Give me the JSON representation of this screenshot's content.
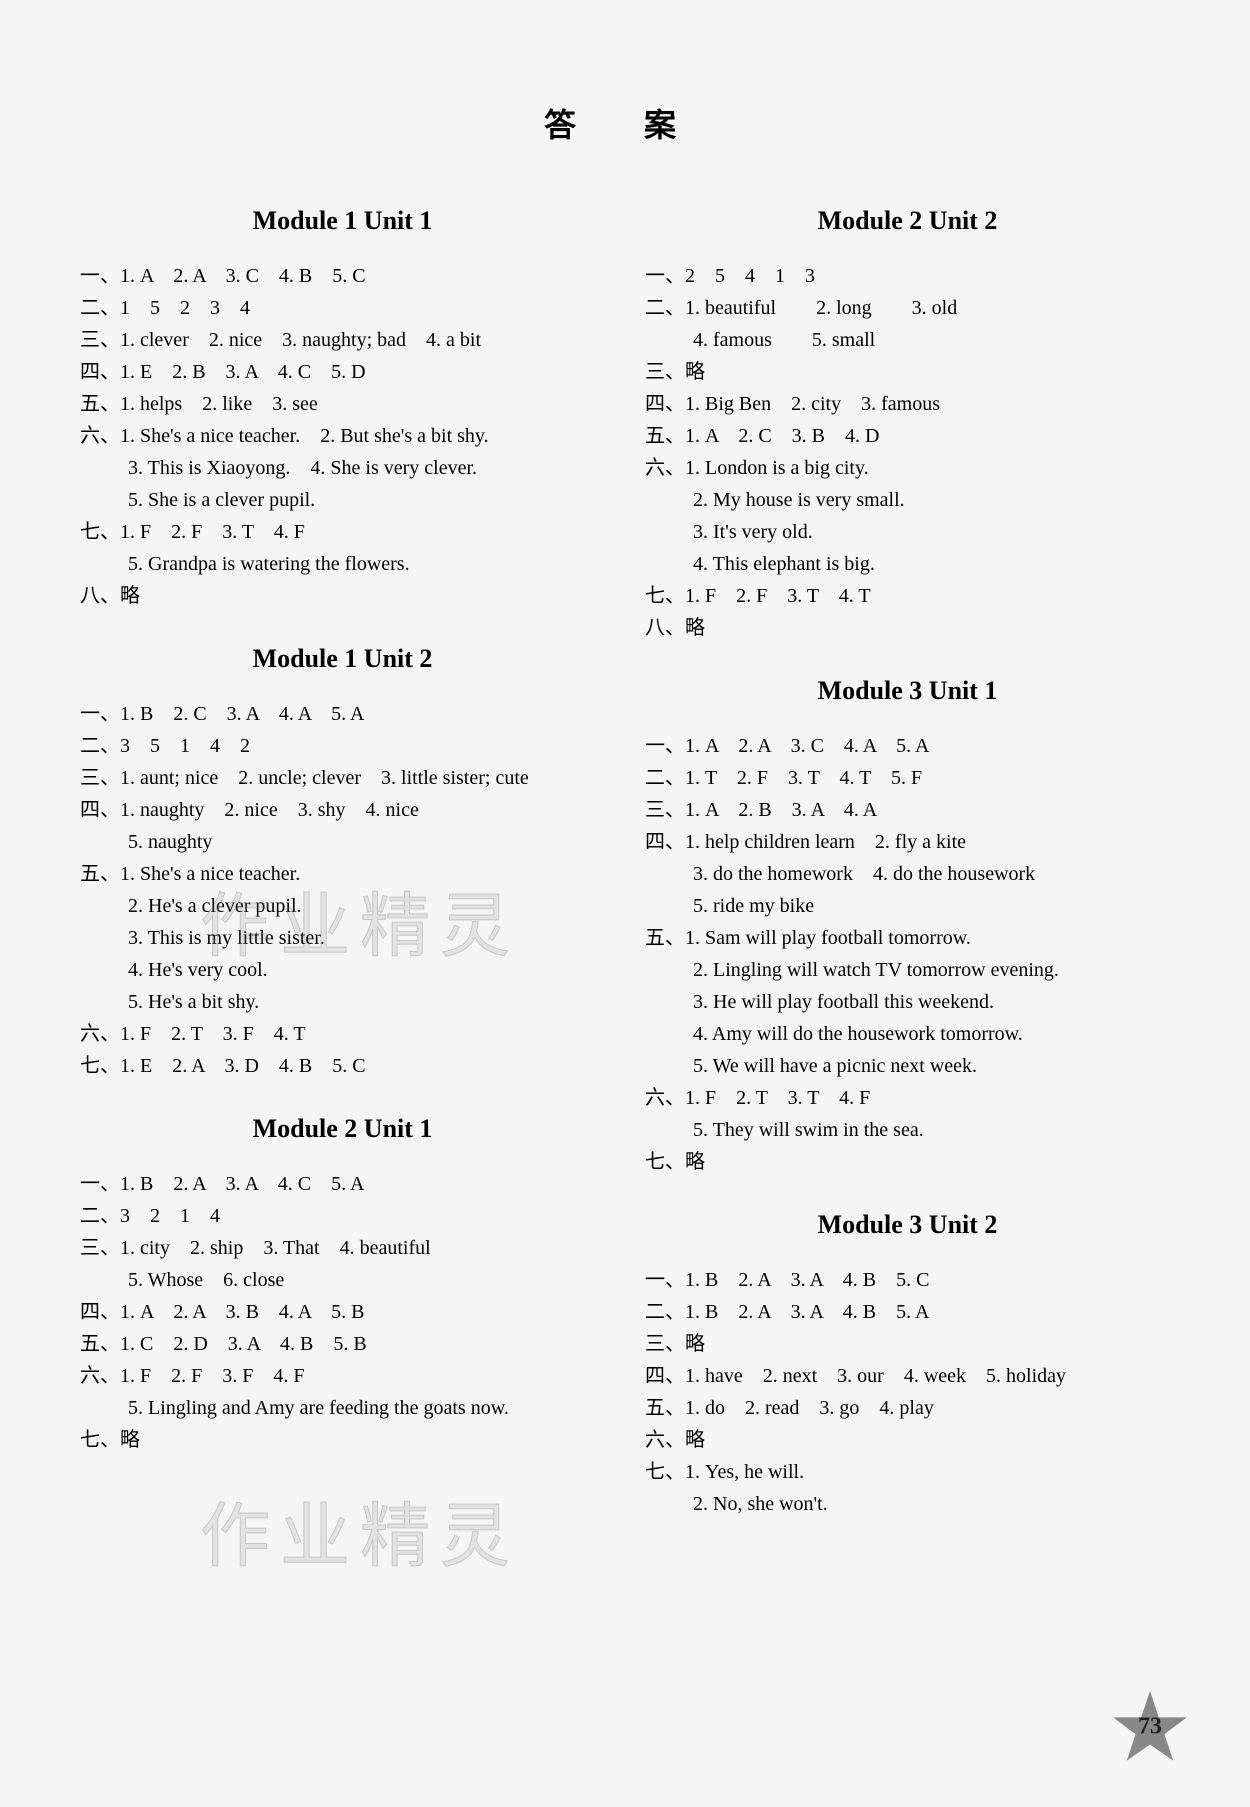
{
  "title": "答 案",
  "page_number": "73",
  "watermarks": [
    "作业精灵",
    "作业精灵"
  ],
  "colors": {
    "background": "#f5f5f5",
    "text": "#000000",
    "star_fill": "#888888",
    "star_number": "#222222"
  },
  "typography": {
    "title_fontsize": 32,
    "module_title_fontsize": 26,
    "body_fontsize": 20,
    "font_family": "Times New Roman / SimSun"
  },
  "left": [
    {
      "title": "Module 1 Unit 1",
      "rows": [
        {
          "label": "一、",
          "text": "1. A　2. A　3. C　4. B　5. C"
        },
        {
          "label": "二、",
          "text": "1　5　2　3　4"
        },
        {
          "label": "三、",
          "text": "1. clever　2. nice　3. naughty; bad　4. a bit"
        },
        {
          "label": "四、",
          "text": "1. E　2. B　3. A　4. C　5. D"
        },
        {
          "label": "五、",
          "text": "1. helps　2. like　3. see"
        },
        {
          "label": "六、",
          "text": "1. She's a nice teacher.　2. But she's a bit shy.",
          "subs": [
            "3. This is Xiaoyong.　4. She is very clever.",
            "5. She is a clever pupil."
          ]
        },
        {
          "label": "七、",
          "text": "1. F　2. F　3. T　4. F",
          "subs": [
            "5. Grandpa is watering the flowers."
          ]
        },
        {
          "label": "八、",
          "text": "略"
        }
      ]
    },
    {
      "title": "Module 1 Unit 2",
      "rows": [
        {
          "label": "一、",
          "text": "1. B　2. C　3. A　4. A　5. A"
        },
        {
          "label": "二、",
          "text": "3　5　1　4　2"
        },
        {
          "label": "三、",
          "text": "1. aunt; nice　2. uncle; clever　3. little sister; cute",
          "subs": []
        },
        {
          "label": "四、",
          "text": "1. naughty　2. nice　3. shy　4. nice",
          "subs": [
            "5. naughty"
          ]
        },
        {
          "label": "五、",
          "text": "1. She's a nice teacher.",
          "subs": [
            "2. He's a clever pupil.",
            "3. This is my little sister.",
            "4. He's very cool.",
            "5. He's a bit shy."
          ]
        },
        {
          "label": "六、",
          "text": "1. F　2. T　3. F　4. T"
        },
        {
          "label": "七、",
          "text": "1. E　2. A　3. D　4. B　5. C"
        }
      ]
    },
    {
      "title": "Module 2 Unit 1",
      "rows": [
        {
          "label": "一、",
          "text": "1. B　2. A　3. A　4. C　5. A"
        },
        {
          "label": "二、",
          "text": "3　2　1　4"
        },
        {
          "label": "三、",
          "text": "1. city　2. ship　3. That　4. beautiful",
          "subs": [
            "5. Whose　6. close"
          ]
        },
        {
          "label": "四、",
          "text": "1. A　2. A　3. B　4. A　5. B"
        },
        {
          "label": "五、",
          "text": "1. C　2. D　3. A　4. B　5. B"
        },
        {
          "label": "六、",
          "text": "1. F　2. F　3. F　4. F",
          "subs": [
            "5. Lingling and Amy are feeding the goats now."
          ]
        },
        {
          "label": "七、",
          "text": "略"
        }
      ]
    }
  ],
  "right": [
    {
      "title": "Module 2 Unit 2",
      "rows": [
        {
          "label": "一、",
          "text": "2　5　4　1　3"
        },
        {
          "label": "二、",
          "text": "1. beautiful　　2. long　　3. old",
          "subs": [
            "4. famous　　5. small"
          ]
        },
        {
          "label": "三、",
          "text": "略"
        },
        {
          "label": "四、",
          "text": "1. Big Ben　2. city　3. famous"
        },
        {
          "label": "五、",
          "text": "1. A　2. C　3. B　4. D"
        },
        {
          "label": "六、",
          "text": "1. London is a big city.",
          "subs": [
            "2. My house is very small.",
            "3. It's very old.",
            "4. This elephant is big."
          ]
        },
        {
          "label": "七、",
          "text": "1. F　2. F　3. T　4. T"
        },
        {
          "label": "八、",
          "text": "略"
        }
      ]
    },
    {
      "title": "Module 3 Unit 1",
      "rows": [
        {
          "label": "一、",
          "text": "1. A　2. A　3. C　4. A　5. A"
        },
        {
          "label": "二、",
          "text": "1. T　2. F　3. T　4. T　5. F"
        },
        {
          "label": "三、",
          "text": "1. A　2. B　3. A　4. A"
        },
        {
          "label": "四、",
          "text": "1. help children learn　2. fly a kite",
          "subs": [
            "3. do the homework　4. do the housework",
            "5. ride my bike"
          ]
        },
        {
          "label": "五、",
          "text": "1. Sam will play football tomorrow.",
          "subs": [
            "2. Lingling will watch TV tomorrow evening.",
            "3. He will play football this weekend.",
            "4. Amy will do the housework tomorrow.",
            "5. We will have a picnic next week."
          ]
        },
        {
          "label": "六、",
          "text": "1. F　2. T　3. T　4. F",
          "subs": [
            "5. They will swim in the sea."
          ]
        },
        {
          "label": "七、",
          "text": "略"
        }
      ]
    },
    {
      "title": "Module 3 Unit 2",
      "rows": [
        {
          "label": "一、",
          "text": "1. B　2. A　3. A　4. B　5. C"
        },
        {
          "label": "二、",
          "text": "1. B　2. A　3. A　4. B　5. A"
        },
        {
          "label": "三、",
          "text": "略"
        },
        {
          "label": "四、",
          "text": "1. have　2. next　3. our　4. week　5. holiday"
        },
        {
          "label": "五、",
          "text": "1. do　2. read　3. go　4. play"
        },
        {
          "label": "六、",
          "text": "略"
        },
        {
          "label": "七、",
          "text": "1. Yes, he will.",
          "subs": [
            "2. No, she won't."
          ]
        }
      ]
    }
  ]
}
